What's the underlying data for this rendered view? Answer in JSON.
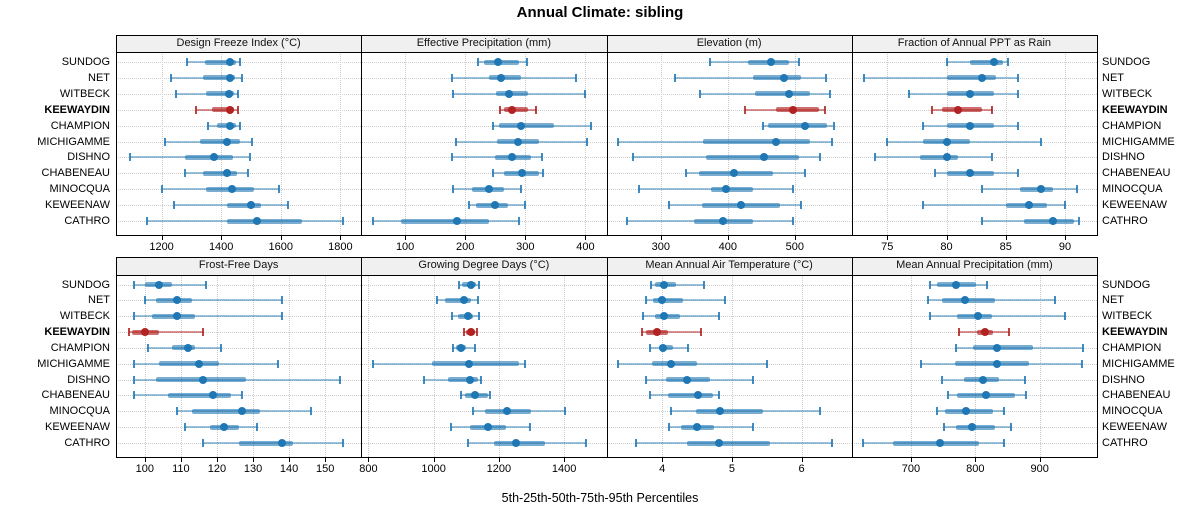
{
  "chart_data": {
    "type": "dot-whisker-percentile-trellis",
    "title": "Annual Climate: sibling",
    "caption": "5th-25th-50th-75th-95th Percentiles",
    "percentile_labels": [
      "5th",
      "25th",
      "50th",
      "75th",
      "95th"
    ],
    "sites": [
      "SUNDOG",
      "NET",
      "WITBECK",
      "KEEWAYDIN",
      "CHAMPION",
      "MICHIGAMME",
      "DISHNO",
      "CHABENEAU",
      "MINOCQUA",
      "KEWEENAW",
      "CATHRO"
    ],
    "highlight_site": "KEEWAYDIN",
    "colors": {
      "blue": "#1f77b4",
      "red": "#b22222",
      "grid": "#cccccc",
      "strip_bg": "#f0f0f0",
      "frame": "#000000"
    },
    "legend_position": "none",
    "grid": "dotted",
    "panels": [
      {
        "name": "Design Freeze Index (°C)",
        "grid_row": 0,
        "grid_col": 0,
        "xlim": [
          1047,
          1870
        ],
        "ticks": [
          1200,
          1400,
          1600,
          1800
        ],
        "values": [
          [
            1285,
            1345,
            1430,
            1450,
            1462
          ],
          [
            1230,
            1340,
            1430,
            1447,
            1470
          ],
          [
            1250,
            1350,
            1425,
            1442,
            1458
          ],
          [
            1315,
            1370,
            1428,
            1442,
            1455
          ],
          [
            1357,
            1385,
            1429,
            1449,
            1462
          ],
          [
            1210,
            1330,
            1420,
            1462,
            1505
          ],
          [
            1095,
            1280,
            1375,
            1440,
            1495
          ],
          [
            1280,
            1340,
            1420,
            1452,
            1490
          ],
          [
            1200,
            1350,
            1435,
            1510,
            1595
          ],
          [
            1240,
            1420,
            1500,
            1532,
            1625
          ],
          [
            1150,
            1420,
            1520,
            1670,
            1810
          ]
        ]
      },
      {
        "name": "Effective Precipitation (mm)",
        "grid_row": 0,
        "grid_col": 1,
        "xlim": [
          27,
          435
        ],
        "ticks": [
          100,
          200,
          300,
          400
        ],
        "values": [
          [
            222,
            232,
            255,
            290,
            303
          ],
          [
            178,
            240,
            260,
            293,
            385
          ],
          [
            180,
            252,
            272,
            305,
            400
          ],
          [
            258,
            264,
            278,
            305,
            318
          ],
          [
            247,
            256,
            293,
            347,
            410
          ],
          [
            185,
            253,
            288,
            322,
            403
          ],
          [
            178,
            249,
            277,
            310,
            328
          ],
          [
            246,
            265,
            294,
            322,
            330
          ],
          [
            180,
            212,
            240,
            265,
            292
          ],
          [
            207,
            218,
            250,
            271,
            300
          ],
          [
            47,
            93,
            187,
            240,
            290
          ]
        ]
      },
      {
        "name": "Elevation (m)",
        "grid_row": 0,
        "grid_col": 2,
        "xlim": [
          219,
          585
        ],
        "ticks": [
          300,
          400,
          500
        ],
        "values": [
          [
            373,
            430,
            465,
            492,
            506
          ],
          [
            321,
            438,
            484,
            510,
            547
          ],
          [
            358,
            440,
            492,
            522,
            552
          ],
          [
            425,
            472,
            497,
            536,
            545
          ],
          [
            452,
            460,
            515,
            548,
            558
          ],
          [
            236,
            363,
            472,
            522,
            556
          ],
          [
            258,
            367,
            454,
            507,
            538
          ],
          [
            337,
            357,
            410,
            468,
            515
          ],
          [
            268,
            375,
            398,
            438,
            498
          ],
          [
            313,
            361,
            420,
            478,
            510
          ],
          [
            250,
            350,
            393,
            437,
            497
          ]
        ]
      },
      {
        "name": "Fraction of Annual PPT as Rain",
        "grid_row": 0,
        "grid_col": 3,
        "xlim": [
          72,
          92.7
        ],
        "ticks": [
          75,
          80,
          85,
          90
        ],
        "values": [
          [
            80,
            82,
            84,
            84.8,
            85.2
          ],
          [
            73,
            80,
            83,
            84.2,
            86
          ],
          [
            76.8,
            80,
            82,
            84,
            86
          ],
          [
            78.8,
            79.6,
            81,
            83,
            83.8
          ],
          [
            78,
            80,
            82,
            84,
            86
          ],
          [
            75,
            78,
            80,
            82,
            88
          ],
          [
            74,
            77.8,
            80,
            81,
            83.8
          ],
          [
            79,
            80,
            82,
            84,
            86
          ],
          [
            83,
            86.2,
            88,
            89,
            91
          ],
          [
            78,
            85,
            87,
            88.5,
            90
          ],
          [
            83,
            86.5,
            89,
            90.8,
            91.2
          ]
        ]
      },
      {
        "name": "Frost-Free Days",
        "grid_row": 1,
        "grid_col": 0,
        "xlim": [
          92,
          160
        ],
        "ticks": [
          100,
          110,
          120,
          130,
          140,
          150
        ],
        "values": [
          [
            97,
            100,
            104,
            107.5,
            117
          ],
          [
            100,
            103,
            109,
            113,
            138
          ],
          [
            97,
            102,
            109,
            114,
            138
          ],
          [
            95.5,
            96.5,
            100,
            104,
            116
          ],
          [
            101,
            107.5,
            112,
            114,
            121
          ],
          [
            97,
            104,
            115,
            120.5,
            137
          ],
          [
            97,
            103,
            116,
            128,
            154
          ],
          [
            97,
            106.5,
            119,
            124,
            127
          ],
          [
            109,
            113,
            127,
            132,
            146
          ],
          [
            111,
            118,
            122,
            126,
            131
          ],
          [
            116,
            126,
            138,
            141,
            155
          ]
        ]
      },
      {
        "name": "Growing Degree Days (°C)",
        "grid_row": 1,
        "grid_col": 1,
        "xlim": [
          778,
          1530
        ],
        "ticks": [
          800,
          1000,
          1200,
          1400
        ],
        "values": [
          [
            1078,
            1087,
            1113,
            1130,
            1138
          ],
          [
            1010,
            1035,
            1094,
            1114,
            1135
          ],
          [
            1055,
            1074,
            1105,
            1121,
            1139
          ],
          [
            1093,
            1098,
            1116,
            1128,
            1134
          ],
          [
            1059,
            1070,
            1085,
            1098,
            1128
          ],
          [
            815,
            995,
            1108,
            1262,
            1280
          ],
          [
            970,
            1045,
            1110,
            1135,
            1145
          ],
          [
            1084,
            1095,
            1126,
            1166,
            1174
          ],
          [
            1120,
            1156,
            1226,
            1298,
            1402
          ],
          [
            1052,
            1110,
            1167,
            1222,
            1294
          ],
          [
            1105,
            1185,
            1254,
            1340,
            1468
          ]
        ]
      },
      {
        "name": "Mean Annual Air Temperature (°C)",
        "grid_row": 1,
        "grid_col": 2,
        "xlim": [
          3.2,
          6.72
        ],
        "ticks": [
          4,
          5,
          6
        ],
        "values": [
          [
            3.84,
            3.9,
            4.02,
            4.2,
            4.6
          ],
          [
            3.77,
            3.87,
            4.0,
            4.3,
            4.9
          ],
          [
            3.72,
            3.9,
            4.02,
            4.25,
            4.82
          ],
          [
            3.71,
            3.77,
            3.93,
            4.08,
            4.55
          ],
          [
            3.83,
            3.95,
            4.01,
            4.15,
            4.37
          ],
          [
            3.37,
            3.86,
            4.13,
            4.5,
            5.5
          ],
          [
            3.77,
            4.06,
            4.35,
            4.68,
            5.3
          ],
          [
            3.83,
            4.08,
            4.52,
            4.73,
            4.82
          ],
          [
            4.13,
            4.49,
            4.83,
            5.45,
            6.26
          ],
          [
            4.1,
            4.27,
            4.5,
            4.75,
            5.3
          ],
          [
            3.62,
            4.35,
            4.82,
            5.55,
            6.43
          ]
        ]
      },
      {
        "name": "Mean Annual Precipitation (mm)",
        "grid_row": 1,
        "grid_col": 3,
        "xlim": [
          608,
          989
        ],
        "ticks": [
          700,
          800,
          900
        ],
        "values": [
          [
            730,
            740,
            770,
            801,
            818
          ],
          [
            727,
            748,
            784,
            830,
            924
          ],
          [
            730,
            771,
            804,
            826,
            940
          ],
          [
            774,
            803,
            815,
            828,
            852
          ],
          [
            770,
            797,
            833,
            890,
            968
          ],
          [
            715,
            769,
            833,
            884,
            965
          ],
          [
            748,
            782,
            812,
            836,
            877
          ],
          [
            758,
            772,
            817,
            861,
            879
          ],
          [
            740,
            753,
            785,
            827,
            845
          ],
          [
            752,
            770,
            795,
            830,
            856
          ],
          [
            626,
            672,
            745,
            805,
            845
          ]
        ]
      }
    ]
  }
}
